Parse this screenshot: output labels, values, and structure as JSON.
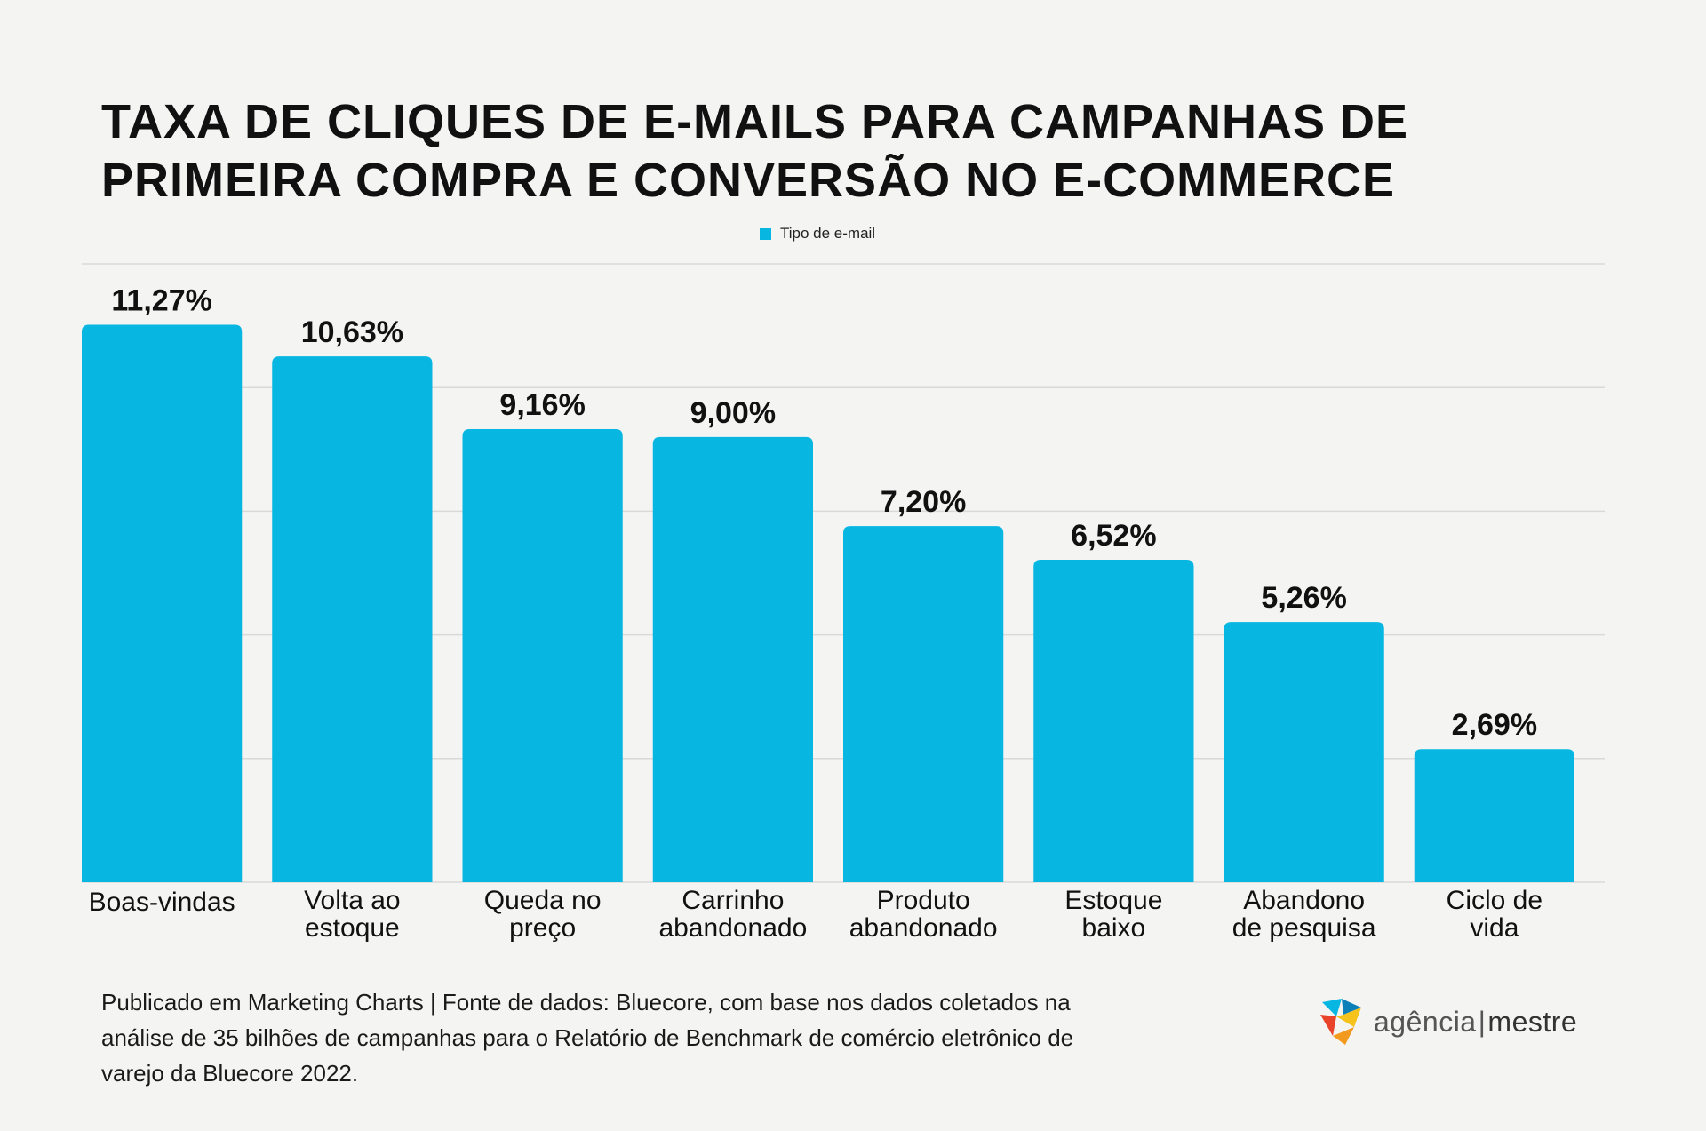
{
  "title_line1": "TAXA DE CLIQUES DE E-MAILS PARA CAMPANHAS DE",
  "title_line2": "PRIMEIRA COMPRA E CONVERSÃO NO E-COMMERCE",
  "legend_label": "Tipo de e-mail",
  "colors": {
    "bar": "#08b6e2",
    "grid": "#d9d9d9",
    "text": "#111111"
  },
  "chart_data": {
    "type": "bar",
    "title": "TAXA DE CLIQUES DE E-MAILS PARA CAMPANHAS DE PRIMEIRA COMPRA E CONVERSÃO NO E-COMMERCE",
    "categories": [
      [
        "Boas-vindas"
      ],
      [
        "Volta ao",
        "estoque"
      ],
      [
        "Queda no",
        "preço"
      ],
      [
        "Carrinho",
        "abandonado"
      ],
      [
        "Produto",
        "abandonado"
      ],
      [
        "Estoque",
        "baixo"
      ],
      [
        "Abandono",
        "de pesquisa"
      ],
      [
        "Ciclo de",
        "vida"
      ]
    ],
    "values": [
      11.27,
      10.63,
      9.16,
      9.0,
      7.2,
      6.52,
      5.26,
      2.69
    ],
    "value_labels": [
      "11,27%",
      "10,63%",
      "9,16%",
      "9,00%",
      "7,20%",
      "6,52%",
      "5,26%",
      "2,69%"
    ],
    "series": [
      {
        "name": "Tipo de e-mail"
      }
    ],
    "xlabel": "",
    "ylabel": "",
    "ylim": [
      0,
      12.5
    ],
    "grid": true,
    "legend_position": "top-center"
  },
  "footer": {
    "line1": "Publicado em Marketing Charts | Fonte de dados: Bluecore, com base nos dados coletados na",
    "line2": "análise de 35 bilhões de campanhas para o Relatório de Benchmark de comércio eletrônico de",
    "line3": "varejo da Bluecore 2022."
  },
  "logo": {
    "part1": "agência",
    "separator": "|",
    "part2": "mestre"
  }
}
